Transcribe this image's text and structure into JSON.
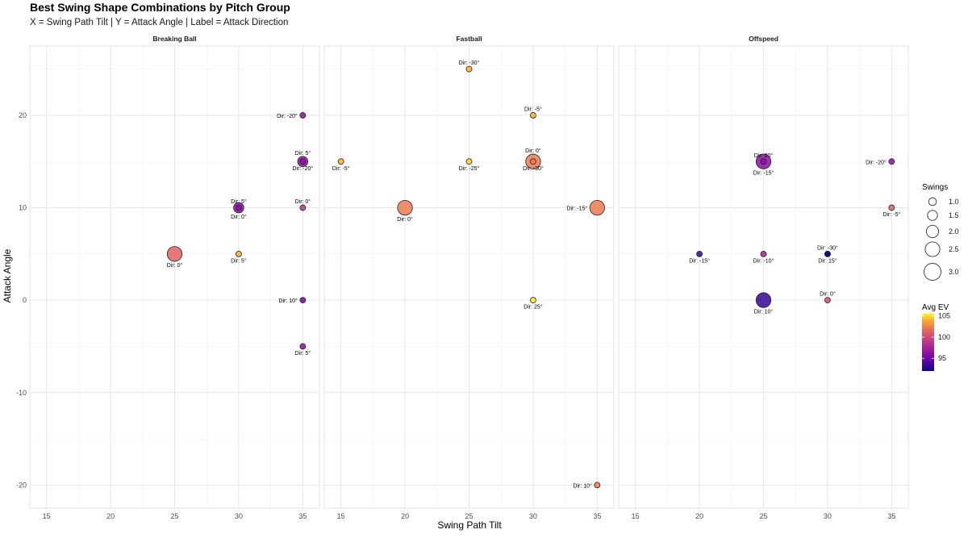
{
  "chart_data": {
    "type": "scatter",
    "title": "Best Swing Shape Combinations by Pitch Group",
    "subtitle": "X = Swing Path Tilt | Y = Attack Angle | Label = Attack Direction",
    "xlabel": "Swing Path Tilt",
    "ylabel": "Attack Angle",
    "xlim": [
      13.7,
      36.3
    ],
    "ylim": [
      -22.5,
      27.5
    ],
    "x_ticks": [
      15,
      20,
      25,
      30,
      35
    ],
    "y_ticks": [
      20,
      10,
      0,
      -10,
      -20
    ],
    "label_prefix": "Dir: ",
    "label_suffix": "°",
    "legend_position": "right",
    "size_legend": {
      "title": "Swings",
      "values": [
        1.0,
        1.5,
        2.0,
        2.5,
        3.0
      ],
      "labels": [
        "1.0",
        "1.5",
        "2.0",
        "2.5",
        "3.0"
      ]
    },
    "color_legend": {
      "title": "Avg EV",
      "min": 92,
      "max": 105.5,
      "ticks": [
        105,
        100,
        95
      ],
      "tick_labels": [
        "105",
        "100",
        "95"
      ],
      "palette": "plasma"
    },
    "facets": [
      {
        "name": "Breaking Ball",
        "points": [
          {
            "x": 35,
            "y": 20,
            "dir": -20,
            "swings": 1,
            "ev": 96,
            "label_pos": "left"
          },
          {
            "x": 35,
            "y": 15,
            "dir": 5,
            "swings": 2,
            "ev": 96,
            "label_pos": "above"
          },
          {
            "x": 35,
            "y": 15,
            "dir": -20,
            "swings": 1,
            "ev": 96,
            "label_pos": "below"
          },
          {
            "x": 30,
            "y": 10,
            "dir": 5,
            "swings": 1,
            "ev": 96,
            "label_pos": "above"
          },
          {
            "x": 30,
            "y": 10,
            "dir": 0,
            "swings": 2,
            "ev": 96,
            "label_pos": "below"
          },
          {
            "x": 35,
            "y": 10,
            "dir": 0,
            "swings": 1,
            "ev": 98,
            "label_pos": "above"
          },
          {
            "x": 25,
            "y": 5,
            "dir": 0,
            "swings": 3,
            "ev": 100,
            "label_pos": "below"
          },
          {
            "x": 30,
            "y": 5,
            "dir": 5,
            "swings": 1,
            "ev": 103,
            "label_pos": "below"
          },
          {
            "x": 35,
            "y": 0,
            "dir": 10,
            "swings": 1,
            "ev": 95,
            "label_pos": "left"
          },
          {
            "x": 35,
            "y": -5,
            "dir": 5,
            "swings": 1,
            "ev": 96,
            "label_pos": "below"
          }
        ]
      },
      {
        "name": "Fastball",
        "points": [
          {
            "x": 25,
            "y": 25,
            "dir": -30,
            "swings": 1,
            "ev": 103,
            "label_pos": "above"
          },
          {
            "x": 30,
            "y": 20,
            "dir": -5,
            "swings": 1,
            "ev": 103,
            "label_pos": "above"
          },
          {
            "x": 15,
            "y": 15,
            "dir": -5,
            "swings": 1,
            "ev": 103,
            "label_pos": "below"
          },
          {
            "x": 25,
            "y": 15,
            "dir": -25,
            "swings": 1,
            "ev": 104,
            "label_pos": "below"
          },
          {
            "x": 30,
            "y": 15,
            "dir": 0,
            "swings": 3,
            "ev": 101,
            "label_pos": "above"
          },
          {
            "x": 30,
            "y": 15,
            "dir": -30,
            "swings": 1,
            "ev": 101,
            "label_pos": "below"
          },
          {
            "x": 20,
            "y": 10,
            "dir": 0,
            "swings": 3,
            "ev": 101,
            "label_pos": "below"
          },
          {
            "x": 35,
            "y": 10,
            "dir": -15,
            "swings": 3,
            "ev": 101,
            "label_pos": "left"
          },
          {
            "x": 30,
            "y": 0,
            "dir": 25,
            "swings": 1,
            "ev": 105,
            "label_pos": "below"
          },
          {
            "x": 35,
            "y": -20,
            "dir": 10,
            "swings": 1,
            "ev": 101,
            "label_pos": "left"
          }
        ]
      },
      {
        "name": "Offspeed",
        "points": [
          {
            "x": 25,
            "y": 15,
            "dir": 20,
            "swings": 1,
            "ev": 96,
            "label_pos": "above"
          },
          {
            "x": 25,
            "y": 15,
            "dir": -15,
            "swings": 3,
            "ev": 96,
            "label_pos": "below"
          },
          {
            "x": 35,
            "y": 15,
            "dir": -20,
            "swings": 1,
            "ev": 96,
            "label_pos": "left"
          },
          {
            "x": 35,
            "y": 10,
            "dir": -5,
            "swings": 1,
            "ev": 100,
            "label_pos": "below"
          },
          {
            "x": 20,
            "y": 5,
            "dir": -15,
            "swings": 1,
            "ev": 93,
            "label_pos": "below"
          },
          {
            "x": 25,
            "y": 5,
            "dir": -10,
            "swings": 1,
            "ev": 97,
            "label_pos": "below"
          },
          {
            "x": 30,
            "y": 5,
            "dir": -30,
            "swings": 1,
            "ev": 92,
            "label_pos": "above"
          },
          {
            "x": 30,
            "y": 5,
            "dir": 15,
            "swings": 1,
            "ev": 92,
            "label_pos": "below"
          },
          {
            "x": 25,
            "y": 0,
            "dir": 10,
            "swings": 3,
            "ev": 93,
            "label_pos": "below"
          },
          {
            "x": 30,
            "y": 0,
            "dir": 0,
            "swings": 1,
            "ev": 99,
            "label_pos": "above"
          }
        ]
      }
    ]
  }
}
